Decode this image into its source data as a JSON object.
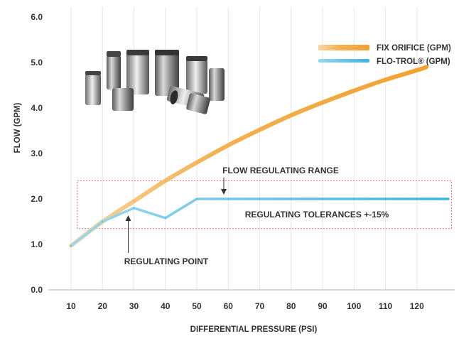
{
  "chart_data": {
    "type": "line",
    "title": "",
    "xlabel": "DIFFERENTIAL PRESSURE (PSI)",
    "ylabel": "FLOW (GPM)",
    "xlim": [
      10,
      130
    ],
    "ylim": [
      0,
      6
    ],
    "x_ticks": [
      "10",
      "20",
      "30",
      "40",
      "50",
      "60",
      "70",
      "80",
      "90",
      "100",
      "110",
      "120"
    ],
    "y_ticks": [
      "0.0",
      "1.0",
      "2.0",
      "3.0",
      "4.0",
      "5.0",
      "6.0"
    ],
    "grid": "vertical",
    "legend_position": "top-right",
    "series": [
      {
        "name": "FIX ORIFICE (GPM)",
        "color": "#f2a131",
        "x": [
          10,
          20,
          30,
          40,
          50,
          60,
          70,
          80,
          90,
          100,
          110,
          120,
          123
        ],
        "y": [
          0.97,
          1.5,
          1.95,
          2.4,
          2.8,
          3.18,
          3.52,
          3.84,
          4.12,
          4.38,
          4.62,
          4.83,
          4.9
        ]
      },
      {
        "name": "FLO-TROL® (GPM)",
        "color": "#3bb4e2",
        "x": [
          10,
          20,
          30,
          40,
          50,
          60,
          70,
          80,
          90,
          100,
          110,
          120,
          130
        ],
        "y": [
          0.97,
          1.5,
          1.8,
          1.58,
          2.0,
          2.0,
          2.0,
          2.0,
          2.0,
          2.0,
          2.0,
          2.0,
          2.0
        ]
      }
    ],
    "annotations": {
      "range_label": "FLOW REGULATING RANGE",
      "tolerance_label": "REGULATING TOLERANCES +-15%",
      "point_label": "REGULATING POINT",
      "range_box": {
        "x": [
          12,
          131
        ],
        "y": [
          1.35,
          2.4
        ]
      },
      "range_arrow_x": 50,
      "point_arrow_x": 30
    },
    "inset_image": "product-photo"
  }
}
